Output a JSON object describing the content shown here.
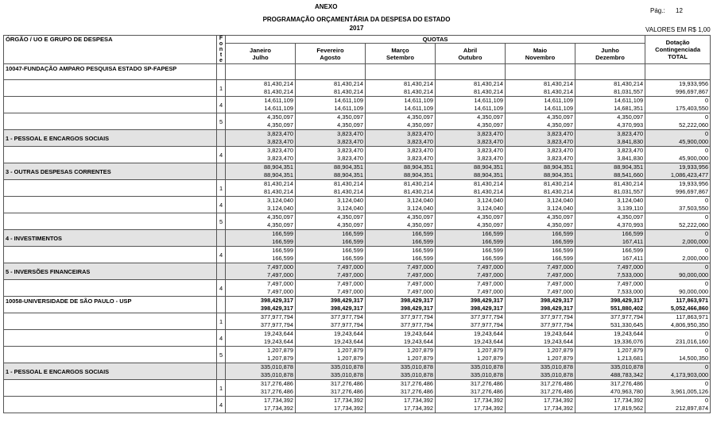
{
  "header": {
    "anexo": "ANEXO",
    "title": "PROGRAMAÇÃO ORÇAMENTÁRIA DA DESPESA DO ESTADO",
    "year": "2017",
    "page_label": "Pág.:",
    "page_number": "12",
    "units": "VALORES EM R$ 1,00"
  },
  "table": {
    "columns": {
      "label": "ÓRGÃO / UO  E GRUPO DE DESPESA",
      "fonte": "Fonte",
      "quotas": "QUOTAS",
      "months": [
        [
          "Janeiro",
          "Julho"
        ],
        [
          "Fevereiro",
          "Agosto"
        ],
        [
          "Março",
          "Setembro"
        ],
        [
          "Abril",
          "Outubro"
        ],
        [
          "Maio",
          "Novembro"
        ],
        [
          "Junho",
          "Dezembro"
        ]
      ],
      "total": [
        "Dotação",
        "Contingenciada",
        "TOTAL"
      ]
    },
    "rows": [
      {
        "label": "10047-FUNDAÇÃO AMPARO PESQUISA ESTADO SP-FAPESP",
        "kind": "section"
      },
      {
        "fonte": "1",
        "values": [
          [
            "81,430,214",
            "81,430,214",
            "81,430,214",
            "81,430,214",
            "81,430,214",
            "81,430,214",
            "19,933,956"
          ],
          [
            "81,430,214",
            "81,430,214",
            "81,430,214",
            "81,430,214",
            "81,430,214",
            "81,031,557",
            "996,697,867"
          ]
        ]
      },
      {
        "fonte": "4",
        "values": [
          [
            "14,611,109",
            "14,611,109",
            "14,611,109",
            "14,611,109",
            "14,611,109",
            "14,611,109",
            "0"
          ],
          [
            "14,611,109",
            "14,611,109",
            "14,611,109",
            "14,611,109",
            "14,611,109",
            "14,681,351",
            "175,403,550"
          ]
        ]
      },
      {
        "fonte": "5",
        "values": [
          [
            "4,350,097",
            "4,350,097",
            "4,350,097",
            "4,350,097",
            "4,350,097",
            "4,350,097",
            "0"
          ],
          [
            "4,350,097",
            "4,350,097",
            "4,350,097",
            "4,350,097",
            "4,350,097",
            "4,370,993",
            "52,222,060"
          ]
        ]
      },
      {
        "label": "1 - PESSOAL E ENCARGOS SOCIAIS",
        "kind": "group",
        "values": [
          [
            "3,823,470",
            "3,823,470",
            "3,823,470",
            "3,823,470",
            "3,823,470",
            "3,823,470",
            "0"
          ],
          [
            "3,823,470",
            "3,823,470",
            "3,823,470",
            "3,823,470",
            "3,823,470",
            "3,841,830",
            "45,900,000"
          ]
        ]
      },
      {
        "fonte": "4",
        "values": [
          [
            "3,823,470",
            "3,823,470",
            "3,823,470",
            "3,823,470",
            "3,823,470",
            "3,823,470",
            "0"
          ],
          [
            "3,823,470",
            "3,823,470",
            "3,823,470",
            "3,823,470",
            "3,823,470",
            "3,841,830",
            "45,900,000"
          ]
        ]
      },
      {
        "label": "3 - OUTRAS DESPESAS CORRENTES",
        "kind": "group",
        "values": [
          [
            "88,904,351",
            "88,904,351",
            "88,904,351",
            "88,904,351",
            "88,904,351",
            "88,904,351",
            "19,933,956"
          ],
          [
            "88,904,351",
            "88,904,351",
            "88,904,351",
            "88,904,351",
            "88,904,351",
            "88,541,660",
            "1,086,423,477"
          ]
        ]
      },
      {
        "fonte": "1",
        "values": [
          [
            "81,430,214",
            "81,430,214",
            "81,430,214",
            "81,430,214",
            "81,430,214",
            "81,430,214",
            "19,933,956"
          ],
          [
            "81,430,214",
            "81,430,214",
            "81,430,214",
            "81,430,214",
            "81,430,214",
            "81,031,557",
            "996,697,867"
          ]
        ]
      },
      {
        "fonte": "4",
        "values": [
          [
            "3,124,040",
            "3,124,040",
            "3,124,040",
            "3,124,040",
            "3,124,040",
            "3,124,040",
            "0"
          ],
          [
            "3,124,040",
            "3,124,040",
            "3,124,040",
            "3,124,040",
            "3,124,040",
            "3,139,110",
            "37,503,550"
          ]
        ]
      },
      {
        "fonte": "5",
        "values": [
          [
            "4,350,097",
            "4,350,097",
            "4,350,097",
            "4,350,097",
            "4,350,097",
            "4,350,097",
            "0"
          ],
          [
            "4,350,097",
            "4,350,097",
            "4,350,097",
            "4,350,097",
            "4,350,097",
            "4,370,993",
            "52,222,060"
          ]
        ]
      },
      {
        "label": "4 - INVESTIMENTOS",
        "kind": "group",
        "values": [
          [
            "166,599",
            "166,599",
            "166,599",
            "166,599",
            "166,599",
            "166,599",
            "0"
          ],
          [
            "166,599",
            "166,599",
            "166,599",
            "166,599",
            "166,599",
            "167,411",
            "2,000,000"
          ]
        ]
      },
      {
        "fonte": "4",
        "values": [
          [
            "166,599",
            "166,599",
            "166,599",
            "166,599",
            "166,599",
            "166,599",
            "0"
          ],
          [
            "166,599",
            "166,599",
            "166,599",
            "166,599",
            "166,599",
            "167,411",
            "2,000,000"
          ]
        ]
      },
      {
        "label": "5 - INVERSÕES FINANCEIRAS",
        "kind": "group",
        "values": [
          [
            "7,497,000",
            "7,497,000",
            "7,497,000",
            "7,497,000",
            "7,497,000",
            "7,497,000",
            "0"
          ],
          [
            "7,497,000",
            "7,497,000",
            "7,497,000",
            "7,497,000",
            "7,497,000",
            "7,533,000",
            "90,000,000"
          ]
        ]
      },
      {
        "fonte": "4",
        "values": [
          [
            "7,497,000",
            "7,497,000",
            "7,497,000",
            "7,497,000",
            "7,497,000",
            "7,497,000",
            "0"
          ],
          [
            "7,497,000",
            "7,497,000",
            "7,497,000",
            "7,497,000",
            "7,497,000",
            "7,533,000",
            "90,000,000"
          ]
        ]
      },
      {
        "label": "10058-UNIVERSIDADE DE SÃO PAULO - USP",
        "kind": "section",
        "values": [
          [
            "398,429,317",
            "398,429,317",
            "398,429,317",
            "398,429,317",
            "398,429,317",
            "398,429,317",
            "117,863,971"
          ],
          [
            "398,429,317",
            "398,429,317",
            "398,429,317",
            "398,429,317",
            "398,429,317",
            "551,880,402",
            "5,052,466,860"
          ]
        ]
      },
      {
        "fonte": "1",
        "values": [
          [
            "377,977,794",
            "377,977,794",
            "377,977,794",
            "377,977,794",
            "377,977,794",
            "377,977,794",
            "117,863,971"
          ],
          [
            "377,977,794",
            "377,977,794",
            "377,977,794",
            "377,977,794",
            "377,977,794",
            "531,330,645",
            "4,806,950,350"
          ]
        ]
      },
      {
        "fonte": "4",
        "values": [
          [
            "19,243,644",
            "19,243,644",
            "19,243,644",
            "19,243,644",
            "19,243,644",
            "19,243,644",
            "0"
          ],
          [
            "19,243,644",
            "19,243,644",
            "19,243,644",
            "19,243,644",
            "19,243,644",
            "19,336,076",
            "231,016,160"
          ]
        ]
      },
      {
        "fonte": "5",
        "values": [
          [
            "1,207,879",
            "1,207,879",
            "1,207,879",
            "1,207,879",
            "1,207,879",
            "1,207,879",
            "0"
          ],
          [
            "1,207,879",
            "1,207,879",
            "1,207,879",
            "1,207,879",
            "1,207,879",
            "1,213,681",
            "14,500,350"
          ]
        ]
      },
      {
        "label": "1 - PESSOAL E ENCARGOS SOCIAIS",
        "kind": "group",
        "values": [
          [
            "335,010,878",
            "335,010,878",
            "335,010,878",
            "335,010,878",
            "335,010,878",
            "335,010,878",
            "0"
          ],
          [
            "335,010,878",
            "335,010,878",
            "335,010,878",
            "335,010,878",
            "335,010,878",
            "488,783,342",
            "4,173,903,000"
          ]
        ]
      },
      {
        "fonte": "1",
        "values": [
          [
            "317,276,486",
            "317,276,486",
            "317,276,486",
            "317,276,486",
            "317,276,486",
            "317,276,486",
            "0"
          ],
          [
            "317,276,486",
            "317,276,486",
            "317,276,486",
            "317,276,486",
            "317,276,486",
            "470,963,780",
            "3,961,005,126"
          ]
        ]
      },
      {
        "fonte": "4",
        "values": [
          [
            "17,734,392",
            "17,734,392",
            "17,734,392",
            "17,734,392",
            "17,734,392",
            "17,734,392",
            "0"
          ],
          [
            "17,734,392",
            "17,734,392",
            "17,734,392",
            "17,734,392",
            "17,734,392",
            "17,819,562",
            "212,897,874"
          ]
        ]
      }
    ]
  }
}
